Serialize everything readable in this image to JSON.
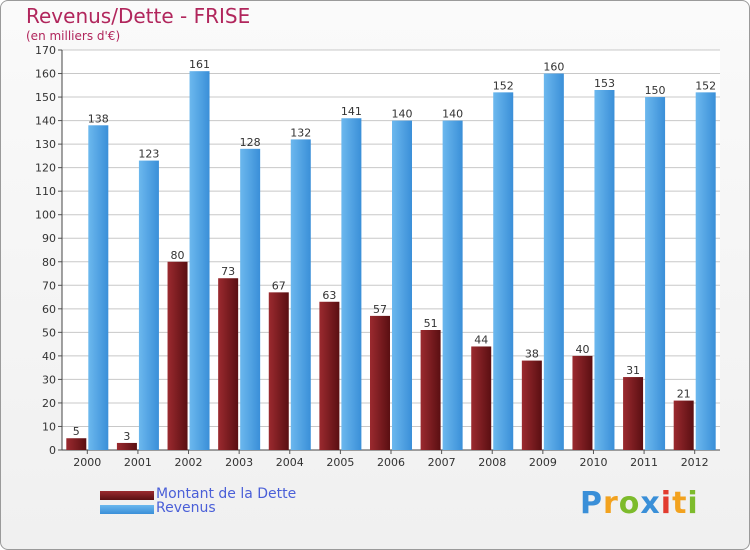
{
  "chart_data": {
    "type": "bar",
    "title": "Revenus/Dette - FRISE",
    "subtitle": "(en milliers d'€)",
    "categories": [
      "2000",
      "2001",
      "2002",
      "2003",
      "2004",
      "2005",
      "2006",
      "2007",
      "2008",
      "2009",
      "2010",
      "2011",
      "2012"
    ],
    "series": [
      {
        "name": "Montant de la Dette",
        "color": "#7a1a1e",
        "values": [
          5,
          3,
          80,
          73,
          67,
          63,
          57,
          51,
          44,
          38,
          40,
          31,
          21
        ]
      },
      {
        "name": "Revenus",
        "color": "#4aa0df",
        "values": [
          138,
          123,
          161,
          128,
          132,
          141,
          140,
          140,
          152,
          160,
          153,
          150,
          152
        ]
      }
    ],
    "ylim": [
      0,
      170
    ],
    "ytick_step": 10,
    "grid": true,
    "legend_position": "bottom-left"
  },
  "brand": {
    "letters": [
      "P",
      "r",
      "o",
      "x",
      "i",
      "t",
      "i"
    ],
    "colors": [
      "#3a8fd8",
      "#f2a21f",
      "#7dbb2c",
      "#3a8fd8",
      "#e23b2e",
      "#f2a21f",
      "#7dbb2c"
    ]
  }
}
